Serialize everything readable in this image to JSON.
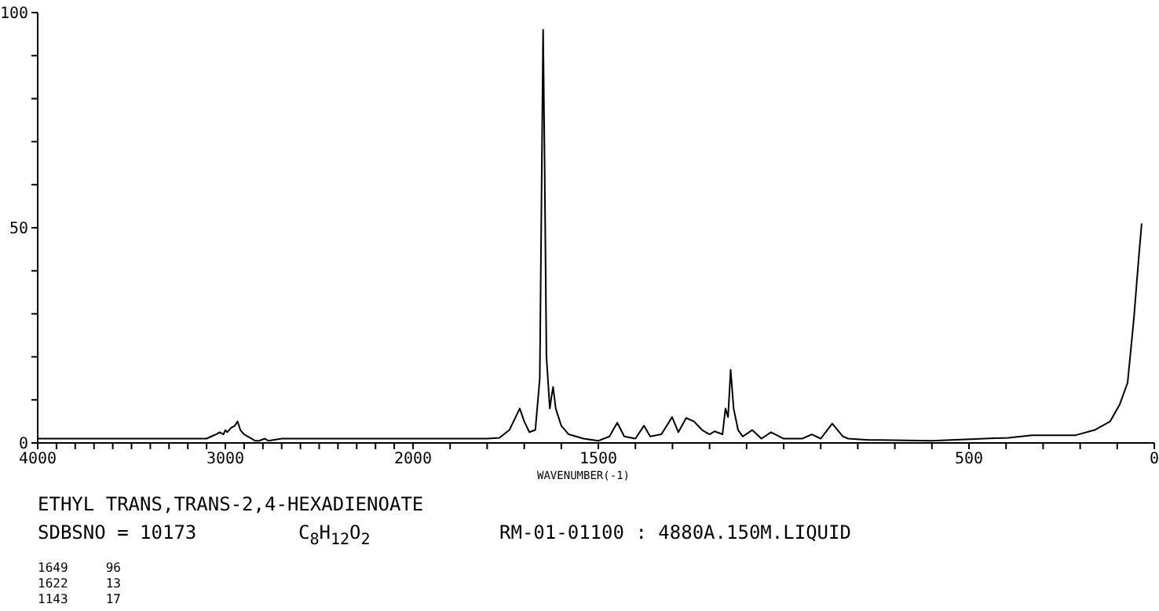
{
  "chart_data": [
    {
      "type": "line",
      "title": "ETHYL TRANS,TRANS-2,4-HEXADIENOATE",
      "color": "#000000",
      "marker": "none",
      "annotations": [
        "SDBSNO = 10173",
        "C$_{8}$H$_{12}$O$_{2}$",
        "RM-01-01100 : 4880A.150M.LIQUID",
        "1649     96",
        "1622     13",
        "1143     17"
      ],
      "x": [
        4000,
        3100,
        3075,
        3050,
        3030,
        3010,
        3000,
        2990,
        2970,
        2950,
        2935,
        2920,
        2900,
        2880,
        2860,
        2840,
        2820,
        2790,
        2770,
        2700,
        2000
      ],
      "values": [
        1,
        1,
        1.5,
        2,
        2.5,
        2,
        3,
        2.5,
        3.5,
        4,
        5,
        3,
        2,
        1.5,
        1,
        0.5,
        0.5,
        1,
        0.5,
        1,
        1
      ],
      "xlim": [
        4000,
        2000
      ],
      "xticks": [
        4000,
        {
          "value": 3900,
          "label": null
        },
        {
          "value": 3800,
          "label": null
        },
        {
          "value": 3700,
          "label": null
        },
        {
          "value": 3600,
          "label": null
        },
        {
          "value": 3500,
          "label": null
        },
        {
          "value": 3400,
          "label": null
        },
        {
          "value": 3300,
          "label": null
        },
        {
          "value": 3200,
          "label": null
        },
        {
          "value": 3100,
          "label": null
        },
        3000,
        {
          "value": 2900,
          "label": null
        },
        {
          "value": 2800,
          "label": null
        },
        {
          "value": 2700,
          "label": null
        },
        {
          "value": 2600,
          "label": null
        },
        {
          "value": 2500,
          "label": null
        },
        {
          "value": 2400,
          "label": null
        },
        {
          "value": 2300,
          "label": null
        },
        {
          "value": 2200,
          "label": null
        },
        {
          "value": 2100,
          "label": null
        },
        {
          "value": 2000,
          "label": null
        }
      ],
      "ylim": [
        0,
        100
      ],
      "yticks": [
        0,
        {
          "value": 10,
          "label": null
        },
        {
          "value": 20,
          "label": null
        },
        {
          "value": 30,
          "label": null
        },
        {
          "value": 40,
          "label": null
        },
        50,
        {
          "value": 60,
          "label": null
        },
        {
          "value": 70,
          "label": null
        },
        {
          "value": 80,
          "label": null
        },
        {
          "value": 90,
          "label": null
        },
        100
      ]
    },
    {
      "type": "line",
      "xlabel": "WAVENUMBER(-1)",
      "color": "#000000",
      "marker": "none",
      "tick_labels": "x",
      "x": [
        2000,
        1800,
        1767,
        1740,
        1712,
        1700,
        1686,
        1670,
        1658,
        1653,
        1649,
        1645,
        1640,
        1631,
        1626,
        1622,
        1615,
        1600,
        1580,
        1560,
        1540,
        1500,
        1470,
        1449,
        1430,
        1400,
        1377,
        1360,
        1330,
        1301,
        1284,
        1263,
        1242,
        1220,
        1200,
        1186,
        1165,
        1157,
        1150,
        1143,
        1135,
        1123,
        1110,
        1085,
        1060,
        1034,
        1000,
        950,
        924,
        900,
        869,
        840,
        826,
        770,
        740,
        600,
        458,
        394,
        330,
        212,
        161,
        119,
        93,
        72,
        55,
        42,
        34
      ],
      "values": [
        1,
        1,
        1.2,
        3,
        8,
        5,
        2.5,
        3,
        15,
        60,
        96,
        65,
        20,
        8,
        11,
        13,
        8,
        4,
        2,
        1.5,
        1,
        0.5,
        1.5,
        4.7,
        1.5,
        1,
        4,
        1.5,
        2,
        6,
        2.5,
        5.8,
        5,
        3,
        2,
        2.7,
        2,
        8,
        6,
        17,
        8,
        3,
        1.5,
        3,
        1,
        2.5,
        1,
        1,
        2,
        1,
        4.5,
        1.5,
        1,
        0.7,
        0.7,
        0.5,
        1,
        1.2,
        1.8,
        1.8,
        3,
        5,
        9,
        14,
        29,
        43,
        51
      ],
      "xlim": [
        2000,
        0
      ],
      "xticks": [
        2000,
        {
          "value": 1900,
          "label": null
        },
        {
          "value": 1800,
          "label": null
        },
        {
          "value": 1700,
          "label": null
        },
        {
          "value": 1600,
          "label": null
        },
        1500,
        {
          "value": 1400,
          "label": null
        },
        {
          "value": 1300,
          "label": null
        },
        {
          "value": 1200,
          "label": null
        },
        {
          "value": 1100,
          "label": null
        },
        {
          "value": 1000,
          "label": null
        },
        {
          "value": 900,
          "label": null
        },
        {
          "value": 800,
          "label": null
        },
        {
          "value": 700,
          "label": null
        },
        {
          "value": 600,
          "label": null
        },
        500,
        {
          "value": 400,
          "label": null
        },
        {
          "value": 300,
          "label": null
        },
        {
          "value": 200,
          "label": null
        },
        {
          "value": 100,
          "label": null
        },
        0
      ],
      "ylim": [
        0,
        100
      ]
    }
  ]
}
